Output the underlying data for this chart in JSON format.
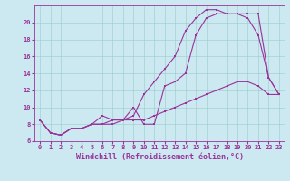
{
  "title": "",
  "xlabel": "Windchill (Refroidissement éolien,°C)",
  "ylabel": "",
  "bg_color": "#cce8f0",
  "line_color": "#993399",
  "grid_color": "#99cccc",
  "xlim": [
    -0.5,
    23.5
  ],
  "ylim": [
    6,
    22
  ],
  "xticks": [
    0,
    1,
    2,
    3,
    4,
    5,
    6,
    7,
    8,
    9,
    10,
    11,
    12,
    13,
    14,
    15,
    16,
    17,
    18,
    19,
    20,
    21,
    22,
    23
  ],
  "yticks": [
    6,
    8,
    10,
    12,
    14,
    16,
    18,
    20
  ],
  "line1_x": [
    0,
    1,
    2,
    3,
    4,
    5,
    6,
    7,
    8,
    9,
    10,
    11,
    12,
    13,
    14,
    15,
    16,
    17,
    18,
    19,
    20,
    21,
    22,
    23
  ],
  "line1_y": [
    8.5,
    7.0,
    6.7,
    7.5,
    7.5,
    8.0,
    8.0,
    8.0,
    8.5,
    8.5,
    8.5,
    9.0,
    9.5,
    10.0,
    10.5,
    11.0,
    11.5,
    12.0,
    12.5,
    13.0,
    13.0,
    12.5,
    11.5,
    11.5
  ],
  "line2_x": [
    0,
    1,
    2,
    3,
    4,
    5,
    6,
    7,
    8,
    9,
    10,
    11,
    12,
    13,
    14,
    15,
    16,
    17,
    18,
    19,
    20,
    21,
    22,
    23
  ],
  "line2_y": [
    8.5,
    7.0,
    6.7,
    7.5,
    7.5,
    8.0,
    8.0,
    8.5,
    8.5,
    10.0,
    8.0,
    8.0,
    12.5,
    13.0,
    14.0,
    18.5,
    20.5,
    21.0,
    21.0,
    21.0,
    20.5,
    18.5,
    13.5,
    11.5
  ],
  "line3_x": [
    0,
    1,
    2,
    3,
    4,
    5,
    6,
    7,
    8,
    9,
    10,
    11,
    12,
    13,
    14,
    15,
    16,
    17,
    18,
    19,
    20,
    21,
    22,
    23
  ],
  "line3_y": [
    8.5,
    7.0,
    6.7,
    7.5,
    7.5,
    8.0,
    9.0,
    8.5,
    8.5,
    9.0,
    11.5,
    13.0,
    14.5,
    16.0,
    19.0,
    20.5,
    21.5,
    21.5,
    21.0,
    21.0,
    21.0,
    21.0,
    13.5,
    11.5
  ],
  "marker_size": 2,
  "linewidth": 0.8,
  "xlabel_fontsize": 6,
  "tick_fontsize": 5
}
